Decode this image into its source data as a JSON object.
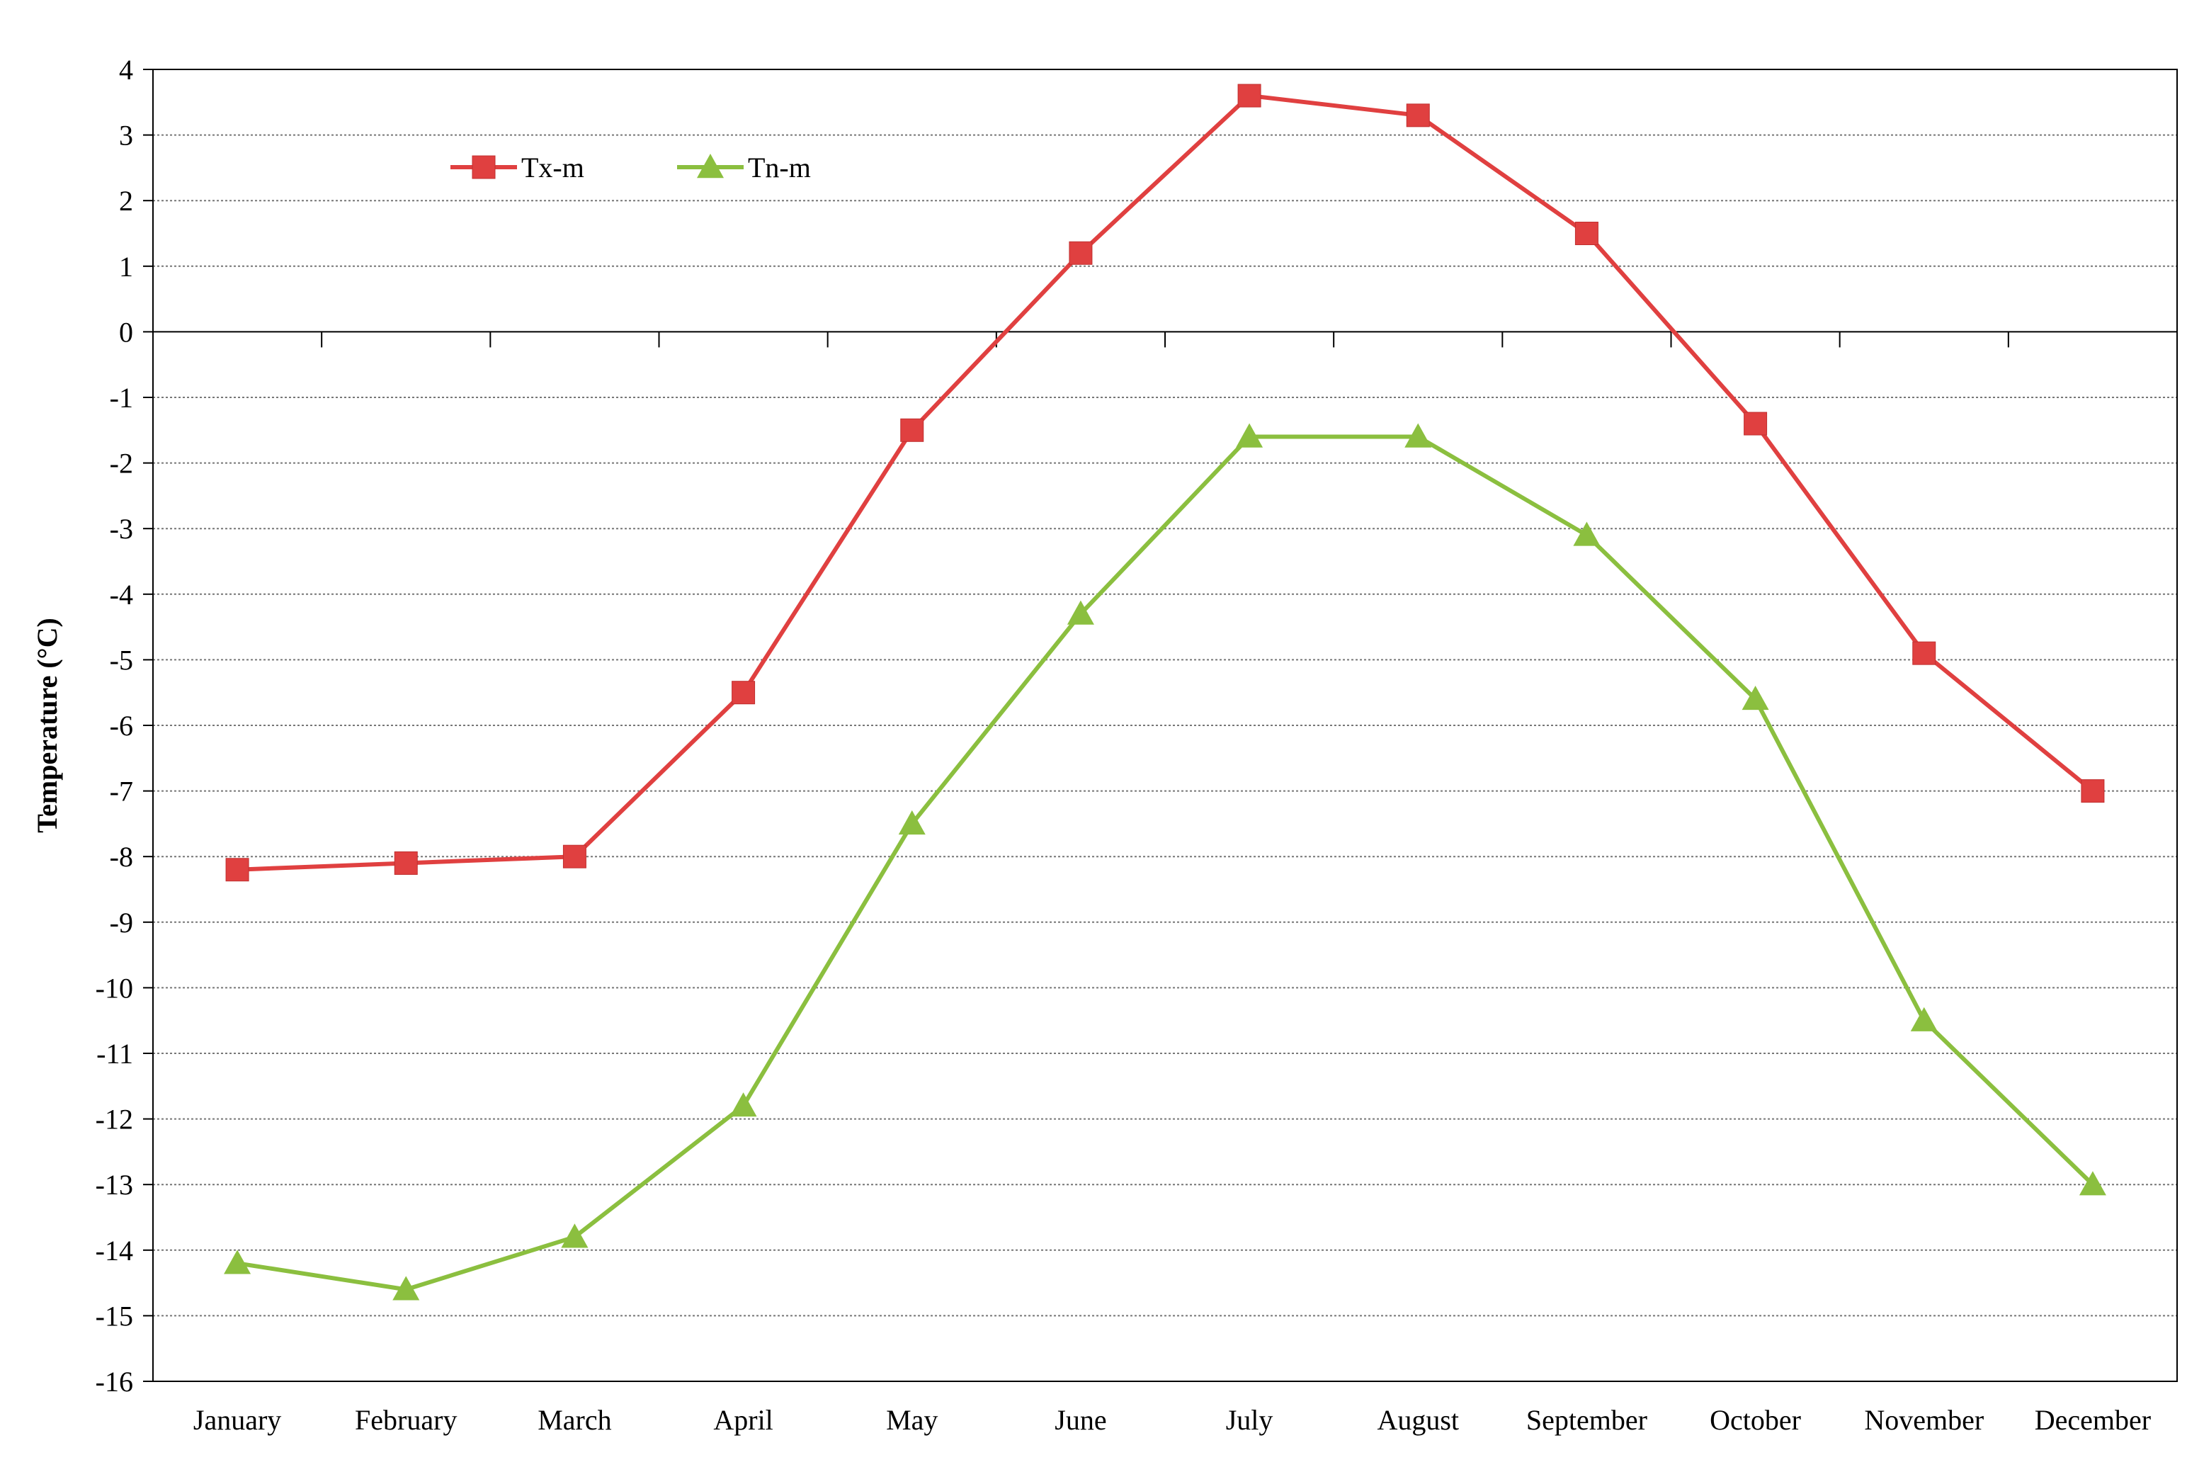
{
  "chart_data": {
    "type": "line",
    "categories": [
      "January",
      "February",
      "March",
      "April",
      "May",
      "June",
      "July",
      "August",
      "September",
      "October",
      "November",
      "December"
    ],
    "series": [
      {
        "name": "Tx-m",
        "values": [
          -8.2,
          -8.1,
          -8.0,
          -5.5,
          -1.5,
          1.2,
          3.6,
          3.3,
          1.5,
          -1.4,
          -4.9,
          -7.0
        ],
        "color": "#e04040",
        "marker": "square"
      },
      {
        "name": "Tn-m",
        "values": [
          -14.2,
          -14.6,
          -13.8,
          -11.8,
          -7.5,
          -4.3,
          -1.6,
          -1.6,
          -3.1,
          -5.6,
          -10.5,
          -13.0
        ],
        "color": "#8bbf3f",
        "marker": "triangle"
      }
    ],
    "xlabel": "",
    "ylabel": "Temperature (°C)",
    "ylim": [
      -16,
      4
    ],
    "ytick_step": 1,
    "grid": true,
    "legend_position": "top-left"
  }
}
